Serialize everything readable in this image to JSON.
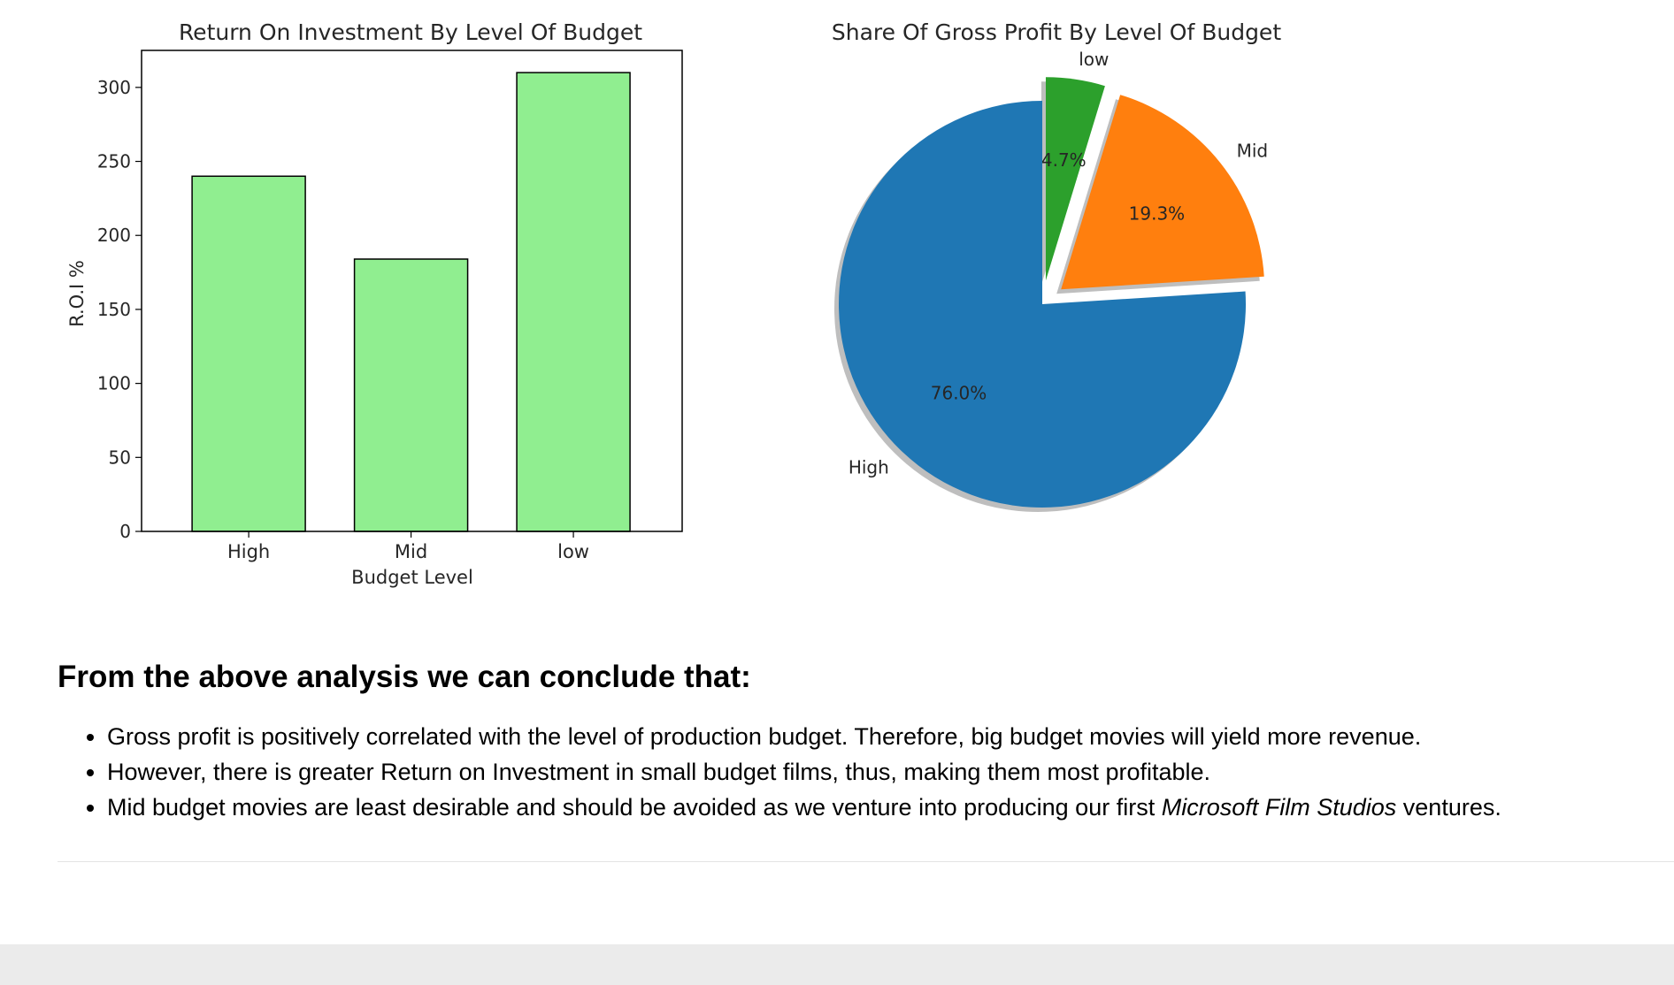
{
  "chart_data": [
    {
      "type": "bar",
      "title": "Return On Investment By Level Of Budget",
      "xlabel": "Budget Level",
      "ylabel": "R.O.I %",
      "categories": [
        "High",
        "Mid",
        "low"
      ],
      "values": [
        240,
        184,
        310
      ],
      "ylim": [
        0,
        325
      ],
      "yticks": [
        0,
        50,
        100,
        150,
        200,
        250,
        300
      ],
      "bar_color": "#90ee90",
      "grid": false
    },
    {
      "type": "pie",
      "title": "Share Of Gross Profit By Level Of Budget",
      "labels": [
        "High",
        "Mid",
        "low"
      ],
      "values": [
        76.0,
        19.3,
        4.7
      ],
      "value_labels": [
        "76.0%",
        "19.3%",
        "4.7%"
      ],
      "colors": [
        "#1f77b4",
        "#ff7f0e",
        "#2ca02c"
      ],
      "exploded": [
        "Mid",
        "low"
      ],
      "shadow": true
    }
  ],
  "conclusion": {
    "heading": "From the above analysis we can conclude that:",
    "bullets": [
      "Gross profit is positively correlated with the level of production budget. Therefore, big budget movies will yield more revenue.",
      "However, there is greater Return on Investment in small budget films, thus, making them most profitable.",
      "Mid budget movies are least desirable and should be avoided as we venture into producing our first "
    ],
    "bullet3_emphasis": "Microsoft Film Studios",
    "bullet3_end": " ventures."
  }
}
